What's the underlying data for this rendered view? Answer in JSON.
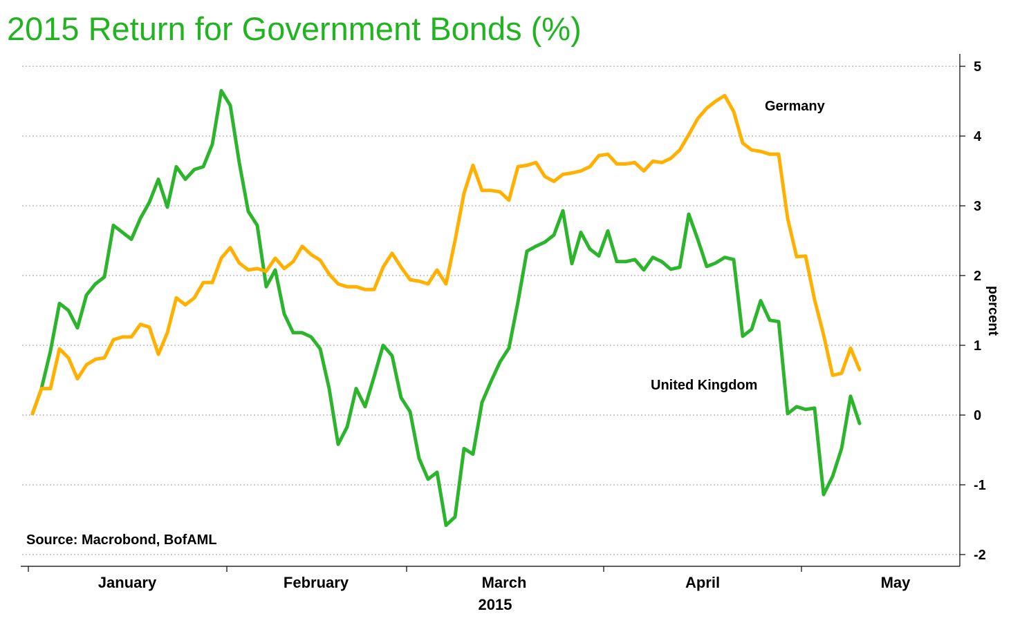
{
  "title": "2015 Return for Government Bonds (%)",
  "source": "Source: Macrobond, BofAML",
  "colors": {
    "title": "#21b421",
    "germany": "#ffb000",
    "uk": "#2cb52c",
    "grid": "#999999"
  },
  "chart_data": {
    "type": "line",
    "title": "2015 Return for Government Bonds (%)",
    "ylabel": "percent",
    "xlabel": "2015",
    "ylim": [
      -2,
      5
    ],
    "y_ticks": [
      "5",
      "4",
      "3",
      "2",
      "1",
      "0",
      "-1",
      "-2"
    ],
    "y_tick_values": [
      5,
      4,
      3,
      2,
      1,
      0,
      -1,
      -2
    ],
    "x_month_labels": [
      "January",
      "February",
      "March",
      "April",
      "May"
    ],
    "x_year_label": "2015",
    "grid": "horizontal dotted",
    "x_axis": "trading days, Jan 1 – Apr 30, 2015",
    "series": [
      {
        "name": "Germany",
        "color": "#ffb000",
        "values": [
          0.02,
          0.38,
          0.38,
          0.95,
          0.82,
          0.52,
          0.72,
          0.8,
          0.82,
          1.08,
          1.12,
          1.12,
          1.3,
          1.26,
          0.87,
          1.18,
          1.68,
          1.58,
          1.68,
          1.9,
          1.9,
          2.25,
          2.4,
          2.18,
          2.08,
          2.1,
          2.06,
          2.25,
          2.1,
          2.2,
          2.42,
          2.3,
          2.22,
          2.02,
          1.88,
          1.84,
          1.84,
          1.8,
          1.8,
          2.12,
          2.32,
          2.12,
          1.94,
          1.92,
          1.88,
          2.08,
          1.88,
          2.5,
          3.18,
          3.58,
          3.22,
          3.22,
          3.2,
          3.08,
          3.56,
          3.58,
          3.62,
          3.42,
          3.35,
          3.45,
          3.47,
          3.5,
          3.56,
          3.72,
          3.74,
          3.6,
          3.6,
          3.62,
          3.5,
          3.64,
          3.62,
          3.68,
          3.8,
          4.02,
          4.25,
          4.4,
          4.5,
          4.58,
          4.35,
          3.9,
          3.8,
          3.78,
          3.74,
          3.74,
          2.82,
          2.27,
          2.28,
          1.65,
          1.15,
          0.57,
          0.6,
          0.96,
          0.65
        ]
      },
      {
        "name": "United Kingdom",
        "color": "#2cb52c",
        "values": [
          0.02,
          0.38,
          0.92,
          1.6,
          1.5,
          1.25,
          1.72,
          1.88,
          1.98,
          2.72,
          2.62,
          2.52,
          2.82,
          3.05,
          3.38,
          2.98,
          3.56,
          3.38,
          3.52,
          3.56,
          3.88,
          4.65,
          4.44,
          3.62,
          2.92,
          2.72,
          1.84,
          2.08,
          1.45,
          1.18,
          1.18,
          1.12,
          0.95,
          0.38,
          -0.42,
          -0.17,
          0.38,
          0.12,
          0.55,
          1.0,
          0.85,
          0.25,
          0.05,
          -0.62,
          -0.92,
          -0.82,
          -1.58,
          -1.46,
          -0.48,
          -0.56,
          0.18,
          0.48,
          0.76,
          0.96,
          1.62,
          2.35,
          2.42,
          2.48,
          2.58,
          2.93,
          2.17,
          2.62,
          2.38,
          2.28,
          2.64,
          2.2,
          2.2,
          2.23,
          2.08,
          2.26,
          2.2,
          2.09,
          2.12,
          2.88,
          2.52,
          2.13,
          2.18,
          2.26,
          2.23,
          1.13,
          1.23,
          1.64,
          1.36,
          1.34,
          0.02,
          0.12,
          0.08,
          0.1,
          -1.14,
          -0.88,
          -0.48,
          0.27,
          -0.12
        ]
      }
    ]
  },
  "annotations": {
    "germany_label": "Germany",
    "uk_label": "United Kingdom"
  }
}
